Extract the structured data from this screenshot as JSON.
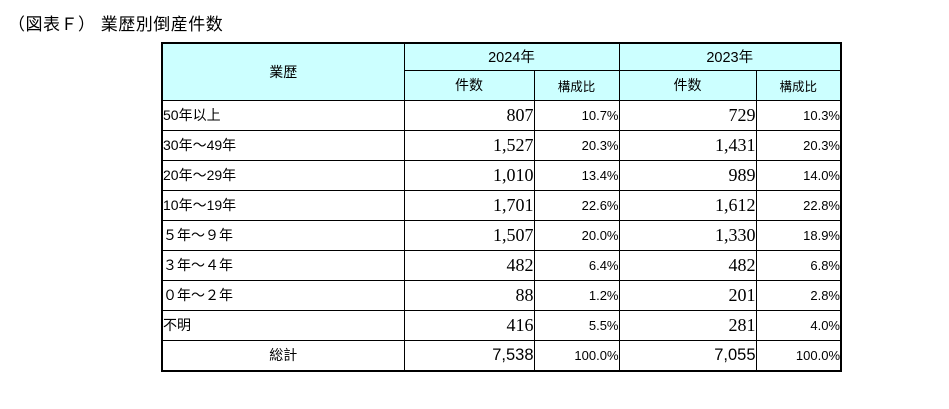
{
  "title": "（図表Ｆ） 業歴別倒産件数",
  "colors": {
    "header_bg": "#CCFFFF",
    "border": "#000000",
    "text": "#000000",
    "background": "#FFFFFF"
  },
  "table": {
    "header": {
      "category": "業歴",
      "year_groups": [
        {
          "year": "2024年",
          "count_label": "件数",
          "share_label": "構成比"
        },
        {
          "year": "2023年",
          "count_label": "件数",
          "share_label": "構成比"
        }
      ]
    },
    "rows": [
      {
        "label": "50年以上",
        "c2024": "807",
        "s2024": "10.7%",
        "c2023": "729",
        "s2023": "10.3%"
      },
      {
        "label": "30年～49年",
        "c2024": "1,527",
        "s2024": "20.3%",
        "c2023": "1,431",
        "s2023": "20.3%"
      },
      {
        "label": "20年～29年",
        "c2024": "1,010",
        "s2024": "13.4%",
        "c2023": "989",
        "s2023": "14.0%"
      },
      {
        "label": "10年～19年",
        "c2024": "1,701",
        "s2024": "22.6%",
        "c2023": "1,612",
        "s2023": "22.8%"
      },
      {
        "label": "５年～９年",
        "c2024": "1,507",
        "s2024": "20.0%",
        "c2023": "1,330",
        "s2023": "18.9%"
      },
      {
        "label": "３年～４年",
        "c2024": "482",
        "s2024": "6.4%",
        "c2023": "482",
        "s2023": "6.8%"
      },
      {
        "label": "０年～２年",
        "c2024": "88",
        "s2024": "1.2%",
        "c2023": "201",
        "s2023": "2.8%"
      },
      {
        "label": "不明",
        "c2024": "416",
        "s2024": "5.5%",
        "c2023": "281",
        "s2023": "4.0%"
      }
    ],
    "total": {
      "label": "総計",
      "c2024": "7,538",
      "s2024": "100.0%",
      "c2023": "7,055",
      "s2023": "100.0%"
    }
  },
  "chart_data": {
    "type": "table",
    "title": "（図表Ｆ）業歴別倒産件数",
    "columns": [
      "業歴",
      "2024年 件数",
      "2024年 構成比",
      "2023年 件数",
      "2023年 構成比"
    ],
    "rows": [
      [
        "50年以上",
        807,
        "10.7%",
        729,
        "10.3%"
      ],
      [
        "30年～49年",
        1527,
        "20.3%",
        1431,
        "20.3%"
      ],
      [
        "20年～29年",
        1010,
        "13.4%",
        989,
        "14.0%"
      ],
      [
        "10年～19年",
        1701,
        "22.6%",
        1612,
        "22.8%"
      ],
      [
        "５年～９年",
        1507,
        "20.0%",
        1330,
        "18.9%"
      ],
      [
        "３年～４年",
        482,
        "6.4%",
        482,
        "6.8%"
      ],
      [
        "０年～２年",
        88,
        "1.2%",
        201,
        "2.8%"
      ],
      [
        "不明",
        416,
        "5.5%",
        281,
        "4.0%"
      ]
    ],
    "total_row": [
      "総計",
      7538,
      "100.0%",
      7055,
      "100.0%"
    ]
  }
}
